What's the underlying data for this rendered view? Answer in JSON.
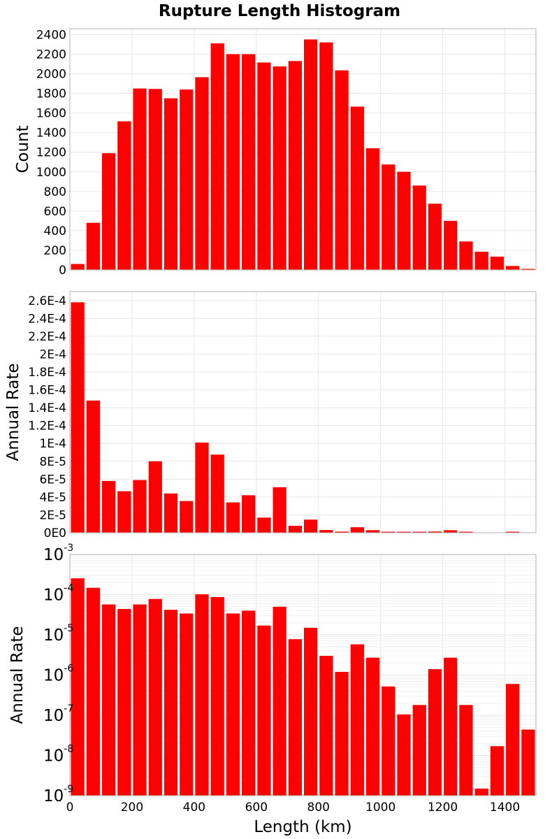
{
  "title": "Rupture Length Histogram",
  "colors": {
    "bar": "#ff0000",
    "grid": "#e6e6e6",
    "frame": "#b0b0b0"
  },
  "chart_data": [
    {
      "type": "bar",
      "bin_width": 50,
      "x": [
        25,
        75,
        125,
        175,
        225,
        275,
        325,
        375,
        425,
        475,
        525,
        575,
        625,
        675,
        725,
        775,
        825,
        875,
        925,
        975,
        1025,
        1075,
        1125,
        1175,
        1225,
        1275,
        1325,
        1375,
        1425,
        1475
      ],
      "values": [
        60,
        480,
        1190,
        1515,
        1850,
        1845,
        1750,
        1840,
        1965,
        2310,
        2200,
        2200,
        2115,
        2075,
        2130,
        2350,
        2320,
        2035,
        1665,
        1240,
        1075,
        1000,
        860,
        675,
        500,
        290,
        185,
        135,
        40,
        10
      ],
      "xlim": [
        0,
        1500
      ],
      "ylim": [
        0,
        2460
      ],
      "yticks": [
        0,
        200,
        400,
        600,
        800,
        1000,
        1200,
        1400,
        1600,
        1800,
        2000,
        2200,
        2400
      ],
      "ytick_labels": [
        "0",
        "200",
        "400",
        "600",
        "800",
        "1000",
        "1200",
        "1400",
        "1600",
        "1800",
        "2000",
        "2200",
        "2400"
      ],
      "ylabel": "Count",
      "yscale": "linear",
      "grid": true
    },
    {
      "type": "bar",
      "bin_width": 50,
      "x": [
        25,
        75,
        125,
        175,
        225,
        275,
        325,
        375,
        425,
        475,
        525,
        575,
        625,
        675,
        725,
        775,
        825,
        875,
        925,
        975,
        1025,
        1075,
        1125,
        1175,
        1225,
        1275,
        1325,
        1375,
        1425,
        1475
      ],
      "values": [
        0.000258,
        0.000148,
        5.8e-05,
        4.65e-05,
        5.9e-05,
        8e-05,
        4.4e-05,
        3.55e-05,
        0.000101,
        8.75e-05,
        3.4e-05,
        4.2e-05,
        1.7e-05,
        5.1e-05,
        7.8e-06,
        1.47e-05,
        3.1e-06,
        1.3e-06,
        6.2e-06,
        2.9e-06,
        5e-07,
        1e-07,
        2e-07,
        1.4e-06,
        2.8e-06,
        2e-07,
        0.0,
        0.0,
        6e-07,
        0.0
      ],
      "xlim": [
        0,
        1500
      ],
      "ylim": [
        0,
        0.00027
      ],
      "yticks": [
        0,
        2e-05,
        4e-05,
        6e-05,
        8e-05,
        0.0001,
        0.00012,
        0.00014,
        0.00016,
        0.00018,
        0.0002,
        0.00022,
        0.00024,
        0.00026
      ],
      "ytick_labels": [
        "0E0",
        "2E-5",
        "4E-5",
        "6E-5",
        "8E-5",
        "1E-4",
        "1.2E-4",
        "1.4E-4",
        "1.6E-4",
        "1.8E-4",
        "2E-4",
        "2.2E-4",
        "2.4E-4",
        "2.6E-4"
      ],
      "ylabel": "Annual Rate",
      "yscale": "linear",
      "grid": true
    },
    {
      "type": "bar",
      "bin_width": 50,
      "x": [
        25,
        75,
        125,
        175,
        225,
        275,
        325,
        375,
        425,
        475,
        525,
        575,
        625,
        675,
        725,
        775,
        825,
        875,
        925,
        975,
        1025,
        1075,
        1125,
        1175,
        1225,
        1275,
        1325,
        1375,
        1425,
        1475
      ],
      "values": [
        0.000255,
        0.000148,
        5.7e-05,
        4.4e-05,
        5.7e-05,
        7.8e-05,
        4.2e-05,
        3.4e-05,
        0.000102,
        8.7e-05,
        3.4e-05,
        4e-05,
        1.7e-05,
        5e-05,
        7.8e-06,
        1.5e-05,
        3e-06,
        1.2e-06,
        5.8e-06,
        2.7e-06,
        5.2e-07,
        1.05e-07,
        1.8e-07,
        1.4e-06,
        2.7e-06,
        1.8e-07,
        1.5e-09,
        1.7e-08,
        6e-07,
        4.4e-08
      ],
      "xlim": [
        0,
        1500
      ],
      "ylim": [
        1e-09,
        0.001
      ],
      "yticks": [
        1e-09,
        1e-08,
        1e-07,
        1e-06,
        1e-05,
        0.0001,
        0.001
      ],
      "ytick_exponents": [
        "-9",
        "-8",
        "-7",
        "-6",
        "-5",
        "-4",
        "-3"
      ],
      "ytick_base": "10",
      "ylabel": "Annual Rate",
      "yscale": "log",
      "grid": true,
      "xticks": [
        0,
        200,
        400,
        600,
        800,
        1000,
        1200,
        1400
      ],
      "xtick_labels": [
        "0",
        "200",
        "400",
        "600",
        "800",
        "1000",
        "1200",
        "1400"
      ],
      "xlabel": "Length (km)"
    }
  ]
}
